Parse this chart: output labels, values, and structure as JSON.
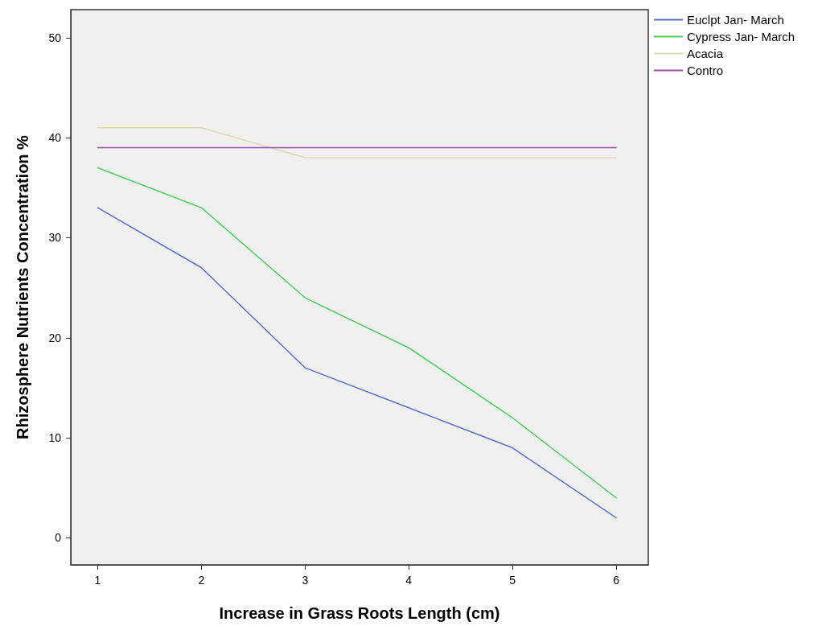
{
  "chart_data": {
    "type": "line",
    "xlabel": "Increase in Grass Roots Length (cm)",
    "ylabel": "Rhizosphere Nutrients Concentration %",
    "x": [
      1,
      2,
      3,
      4,
      5,
      6
    ],
    "series": [
      {
        "name": "Euclpt Jan- March",
        "color": "#5b6fc9",
        "values": [
          33,
          27,
          17,
          13,
          9,
          2
        ]
      },
      {
        "name": "Cypress Jan- March",
        "color": "#4fcb5f",
        "values": [
          37,
          33,
          24,
          19,
          12,
          4
        ]
      },
      {
        "name": "Acacia",
        "color": "#dcdcae",
        "values": [
          41,
          41,
          38,
          38,
          38,
          38
        ]
      },
      {
        "name": "Contro",
        "color": "#a048a8",
        "values": [
          39,
          39,
          39,
          39,
          39,
          39
        ]
      }
    ],
    "xlim": [
      0.74,
      6.31
    ],
    "xticks": [
      1,
      2,
      3,
      4,
      5,
      6
    ],
    "ylim": [
      -2.7,
      52.8
    ],
    "yticks": [
      0,
      10,
      20,
      30,
      40,
      50
    ],
    "grid": false,
    "legend": "top right",
    "marker": "none",
    "line_style": "solid"
  }
}
